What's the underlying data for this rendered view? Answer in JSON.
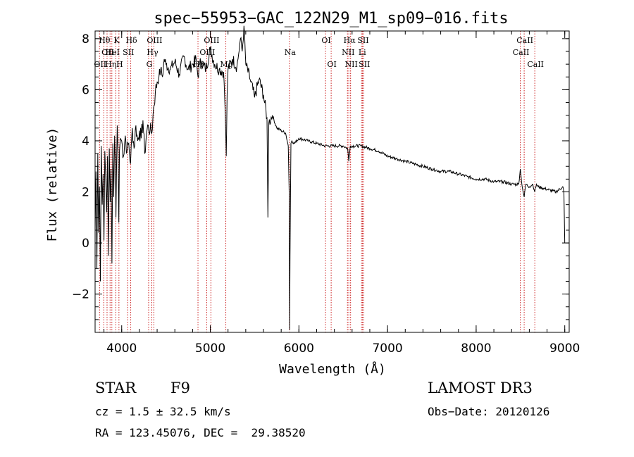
{
  "chart_data": {
    "type": "line",
    "title": "spec−55953−GAC_122N29_M1_sp09−016.fits",
    "xlabel": "Wavelength (Å)",
    "ylabel": "Flux (relative)",
    "xlim": [
      3700,
      9050
    ],
    "ylim": [
      -3.5,
      8.3
    ],
    "xticks": [
      4000,
      5000,
      6000,
      7000,
      8000,
      9000
    ],
    "yticks": [
      -2,
      0,
      2,
      4,
      6,
      8
    ],
    "grid": false,
    "series": [
      {
        "name": "flux",
        "x": [
          3700,
          3710,
          3720,
          3730,
          3740,
          3750,
          3760,
          3770,
          3780,
          3790,
          3800,
          3810,
          3820,
          3830,
          3840,
          3850,
          3860,
          3870,
          3880,
          3890,
          3900,
          3910,
          3920,
          3930,
          3935,
          3940,
          3950,
          3960,
          3968,
          3975,
          3985,
          4000,
          4020,
          4040,
          4060,
          4080,
          4100,
          4120,
          4140,
          4160,
          4180,
          4200,
          4220,
          4240,
          4260,
          4280,
          4300,
          4320,
          4340,
          4360,
          4380,
          4400,
          4420,
          4440,
          4460,
          4480,
          4500,
          4550,
          4600,
          4650,
          4700,
          4750,
          4800,
          4840,
          4861,
          4880,
          4900,
          4950,
          5000,
          5050,
          5100,
          5150,
          5170,
          5180,
          5190,
          5200,
          5250,
          5300,
          5320,
          5340,
          5360,
          5380,
          5400,
          5450,
          5500,
          5550,
          5600,
          5640,
          5650,
          5660,
          5700,
          5750,
          5800,
          5850,
          5880,
          5890,
          5896,
          5900,
          5910,
          5920,
          5950,
          6000,
          6100,
          6200,
          6300,
          6400,
          6500,
          6550,
          6563,
          6580,
          6700,
          6800,
          6900,
          7000,
          7100,
          7200,
          7300,
          7400,
          7500,
          7600,
          7700,
          7800,
          7900,
          8000,
          8100,
          8200,
          8300,
          8400,
          8480,
          8498,
          8520,
          8542,
          8560,
          8600,
          8640,
          8662,
          8680,
          8700,
          8800,
          8900,
          8980,
          8990,
          9000
        ],
        "values": [
          0.5,
          2.8,
          -1.0,
          3.5,
          0.4,
          2.2,
          -1.5,
          3.8,
          1.5,
          2.7,
          0.1,
          3.6,
          2.5,
          1.2,
          3.4,
          -0.5,
          3.7,
          1.6,
          2.9,
          -0.8,
          3.9,
          1.8,
          4.2,
          3.0,
          1.0,
          2.5,
          4.6,
          3.3,
          0.8,
          3.6,
          4.1,
          4.0,
          3.4,
          4.2,
          3.6,
          3.9,
          3.1,
          4.5,
          3.7,
          4.6,
          4.0,
          4.4,
          4.1,
          4.8,
          3.5,
          4.3,
          4.6,
          4.4,
          4.3,
          5.3,
          5.9,
          6.3,
          6.5,
          6.8,
          6.5,
          7.2,
          7.0,
          6.8,
          7.1,
          6.6,
          7.3,
          6.8,
          7.0,
          7.2,
          6.5,
          7.0,
          7.1,
          6.8,
          7.6,
          7.0,
          6.8,
          6.7,
          5.0,
          3.4,
          5.8,
          6.8,
          7.2,
          6.9,
          7.4,
          8.0,
          7.5,
          8.5,
          7.0,
          6.4,
          5.7,
          6.4,
          5.8,
          4.9,
          1.0,
          4.7,
          5.0,
          4.5,
          4.4,
          4.3,
          3.8,
          2.0,
          -3.4,
          -0.5,
          3.9,
          4.0,
          3.9,
          4.1,
          4.0,
          3.9,
          3.8,
          3.8,
          3.8,
          3.7,
          3.2,
          3.8,
          3.8,
          3.7,
          3.6,
          3.4,
          3.3,
          3.2,
          3.1,
          3.0,
          2.9,
          2.8,
          2.8,
          2.7,
          2.6,
          2.5,
          2.5,
          2.4,
          2.4,
          2.3,
          2.3,
          2.9,
          2.2,
          1.8,
          2.3,
          2.2,
          2.3,
          2.0,
          2.3,
          2.2,
          2.1,
          2.0,
          2.2,
          2.0,
          0.0
        ]
      }
    ],
    "lines": [
      {
        "x": 3750,
        "labels": [
          "OII"
        ],
        "row": 2
      },
      {
        "x": 3798,
        "labels": [
          "Hθ"
        ],
        "row": 0
      },
      {
        "x": 3835,
        "labels": [
          "OII"
        ],
        "row": 1
      },
      {
        "x": 3869,
        "labels": [
          "Hη"
        ],
        "row": 2
      },
      {
        "x": 3889,
        "labels": [
          "HeI"
        ],
        "row": 1
      },
      {
        "x": 3934,
        "labels": [
          "K"
        ],
        "row": 0
      },
      {
        "x": 3969,
        "labels": [
          "H"
        ],
        "row": 2
      },
      {
        "x": 4068,
        "labels": [
          "SII"
        ],
        "row": 1
      },
      {
        "x": 4102,
        "labels": [
          "Hδ"
        ],
        "row": 0
      },
      {
        "x": 4304,
        "labels": [
          "G"
        ],
        "row": 2
      },
      {
        "x": 4340,
        "labels": [
          "Hγ"
        ],
        "row": 1
      },
      {
        "x": 4363,
        "labels": [
          "OIII"
        ],
        "row": 0
      },
      {
        "x": 4861,
        "labels": [
          "Hβ"
        ],
        "row": 2
      },
      {
        "x": 4959,
        "labels": [
          "OIII"
        ],
        "row": 1
      },
      {
        "x": 5007,
        "labels": [
          "OIII"
        ],
        "row": 0
      },
      {
        "x": 5175,
        "labels": [
          "Mg"
        ],
        "row": 2
      },
      {
        "x": 5893,
        "labels": [
          "Na"
        ],
        "row": 1
      },
      {
        "x": 6300,
        "labels": [
          "OI"
        ],
        "row": 0
      },
      {
        "x": 6364,
        "labels": [
          "OI"
        ],
        "row": 2
      },
      {
        "x": 6548,
        "labels": [
          "NII"
        ],
        "row": 1
      },
      {
        "x": 6563,
        "labels": [
          "Hα"
        ],
        "row": 0
      },
      {
        "x": 6583,
        "labels": [
          "NII"
        ],
        "row": 2
      },
      {
        "x": 6707,
        "labels": [
          "Li"
        ],
        "row": 1
      },
      {
        "x": 6717,
        "labels": [
          "SII"
        ],
        "row": 0
      },
      {
        "x": 6731,
        "labels": [
          "SII"
        ],
        "row": 2
      },
      {
        "x": 8498,
        "labels": [
          "CaII"
        ],
        "row": 1
      },
      {
        "x": 8542,
        "labels": [
          "CaII"
        ],
        "row": 0
      },
      {
        "x": 8662,
        "labels": [
          "CaII"
        ],
        "row": 2
      }
    ]
  },
  "footer": {
    "object_type": "STAR",
    "subclass": "F9",
    "survey": "LAMOST DR3",
    "cz": "cz = 1.5 ± 32.5 km/s",
    "obs_date": "Obs−Date: 20120126",
    "radec": "RA = 123.45076, DEC =  29.38520"
  }
}
